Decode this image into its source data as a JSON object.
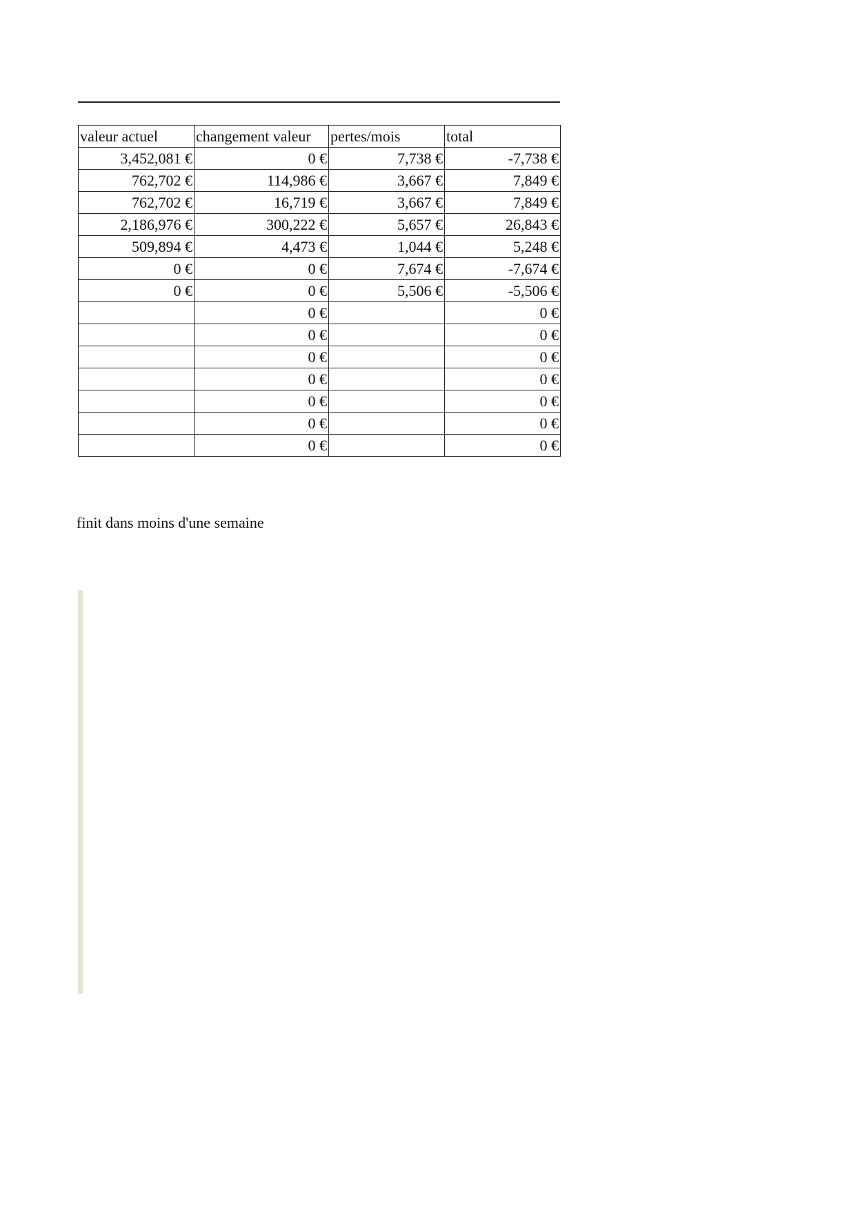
{
  "table": {
    "headers": [
      "valeur actuel",
      "changement valeur",
      "pertes/mois",
      "total"
    ],
    "rows": [
      [
        "3,452,081 €",
        "0 €",
        "7,738 €",
        "-7,738 €"
      ],
      [
        "762,702 €",
        "114,986 €",
        "3,667 €",
        "7,849 €"
      ],
      [
        "762,702 €",
        "16,719 €",
        "3,667 €",
        "7,849 €"
      ],
      [
        "2,186,976 €",
        "300,222 €",
        "5,657 €",
        "26,843 €"
      ],
      [
        "509,894 €",
        "4,473 €",
        "1,044 €",
        "5,248 €"
      ],
      [
        "0 €",
        "0 €",
        "7,674 €",
        "-7,674 €"
      ],
      [
        "0 €",
        "0 €",
        "5,506 €",
        "-5,506 €"
      ],
      [
        "",
        "0 €",
        "",
        "0 €"
      ],
      [
        "",
        "0 €",
        "",
        "0 €"
      ],
      [
        "",
        "0 €",
        "",
        "0 €"
      ],
      [
        "",
        "0 €",
        "",
        "0 €"
      ],
      [
        "",
        "0 €",
        "",
        "0 €"
      ],
      [
        "",
        "0 €",
        "",
        "0 €"
      ],
      [
        "",
        "0 €",
        "",
        "0 €"
      ]
    ]
  },
  "note": "finit dans moins d'une semaine",
  "colors": {
    "side_bar": "#dfe8d3"
  }
}
